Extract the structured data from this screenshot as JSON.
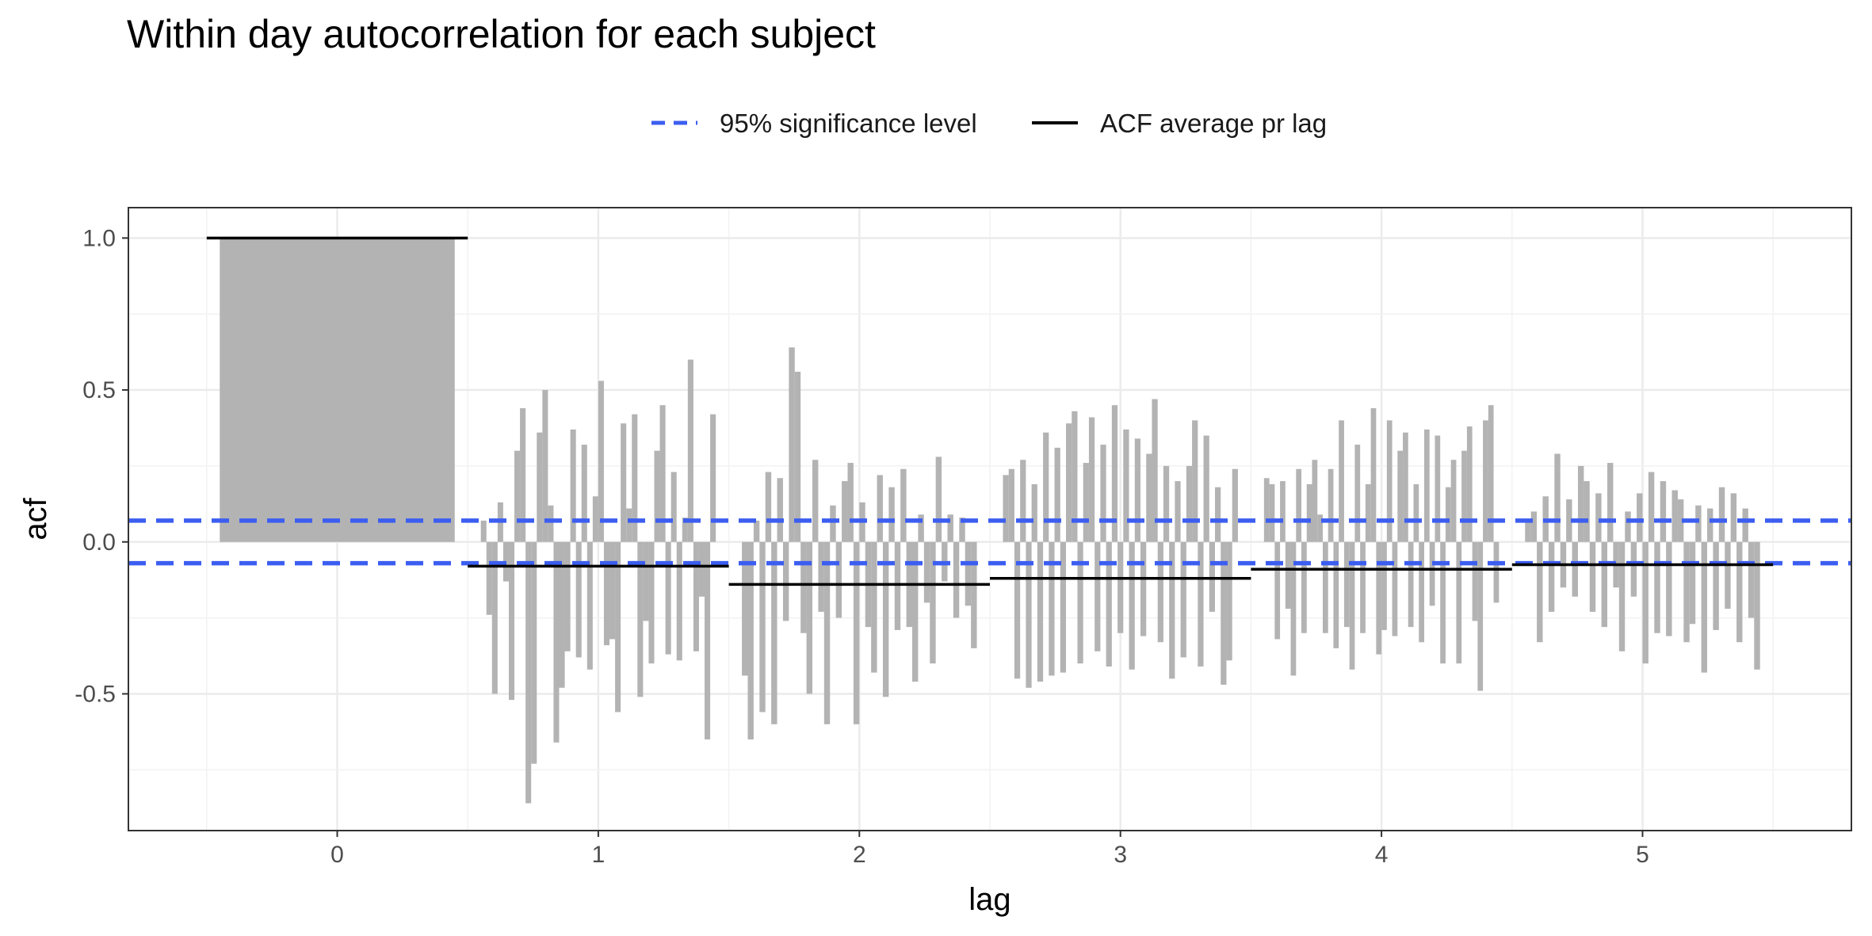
{
  "chart_data": {
    "type": "bar",
    "title": "Within day autocorrelation for each subject",
    "xlabel": "lag",
    "ylabel": "acf",
    "x_ticks": [
      0,
      1,
      2,
      3,
      4,
      5
    ],
    "x_tick_labels": [
      "0",
      "1",
      "2",
      "3",
      "4",
      "5"
    ],
    "y_ticks": [
      -0.5,
      0.0,
      0.5,
      1.0
    ],
    "y_tick_labels": [
      "-0.5",
      "0.0",
      "0.5",
      "1.0"
    ],
    "xlim": [
      -0.8,
      5.8
    ],
    "ylim": [
      -0.95,
      1.1
    ],
    "grid": true,
    "legend_position": "top",
    "legend": [
      {
        "name": "95% significance level",
        "style": "dashed",
        "color": "#3c5ef0"
      },
      {
        "name": "ACF average pr lag",
        "style": "solid",
        "color": "#000000"
      }
    ],
    "bar_color": "#b3b3b3",
    "significance_level": 0.07,
    "acf_average_by_lag": [
      {
        "lag": 0,
        "value": 1.0
      },
      {
        "lag": 1,
        "value": -0.08
      },
      {
        "lag": 2,
        "value": -0.14
      },
      {
        "lag": 3,
        "value": -0.12
      },
      {
        "lag": 4,
        "value": -0.09
      },
      {
        "lag": 5,
        "value": -0.075
      }
    ],
    "series": [
      {
        "lag": 0,
        "values": [
          1.0
        ]
      },
      {
        "lag": 1,
        "values": [
          0.07,
          -0.24,
          -0.5,
          0.13,
          -0.13,
          -0.52,
          0.3,
          0.44,
          -0.86,
          -0.73,
          0.36,
          0.5,
          0.12,
          -0.66,
          -0.48,
          -0.36,
          0.37,
          -0.38,
          0.32,
          -0.42,
          0.15,
          0.53,
          -0.34,
          -0.32,
          -0.56,
          0.39,
          0.11,
          0.42,
          -0.51,
          -0.26,
          -0.4,
          0.3,
          0.45,
          -0.37,
          0.23,
          -0.39,
          0.08,
          0.6,
          -0.36,
          -0.18,
          -0.65,
          0.42
        ]
      },
      {
        "lag": 2,
        "values": [
          -0.44,
          -0.65,
          0.07,
          -0.56,
          0.23,
          -0.6,
          0.21,
          -0.26,
          0.64,
          0.56,
          -0.3,
          -0.5,
          0.27,
          -0.23,
          -0.6,
          0.12,
          -0.25,
          0.2,
          0.26,
          -0.6,
          0.13,
          -0.28,
          -0.43,
          0.22,
          -0.51,
          0.18,
          -0.29,
          0.24,
          -0.28,
          -0.46,
          0.09,
          -0.2,
          -0.4,
          0.28,
          -0.13,
          0.09,
          -0.25,
          0.08,
          -0.21,
          -0.35
        ]
      },
      {
        "lag": 3,
        "values": [
          0.22,
          0.24,
          -0.45,
          0.27,
          -0.48,
          0.19,
          -0.46,
          0.36,
          -0.44,
          0.31,
          -0.43,
          0.39,
          0.43,
          -0.4,
          0.26,
          0.41,
          -0.36,
          0.32,
          -0.41,
          0.45,
          -0.3,
          0.37,
          -0.42,
          0.34,
          -0.31,
          0.29,
          0.47,
          -0.33,
          0.25,
          -0.45,
          0.2,
          -0.38,
          0.25,
          0.4,
          -0.41,
          0.35,
          -0.23,
          0.18,
          -0.47,
          -0.39,
          0.24
        ]
      },
      {
        "lag": 4,
        "values": [
          0.21,
          0.19,
          -0.32,
          0.2,
          -0.22,
          -0.44,
          0.24,
          -0.3,
          0.19,
          0.27,
          0.09,
          -0.3,
          0.24,
          -0.35,
          0.4,
          -0.28,
          -0.42,
          0.32,
          -0.3,
          0.19,
          0.44,
          -0.37,
          -0.29,
          0.4,
          -0.31,
          0.3,
          0.36,
          -0.28,
          0.19,
          -0.33,
          0.37,
          -0.21,
          0.35,
          -0.4,
          0.18,
          0.27,
          -0.4,
          0.3,
          0.38,
          -0.26,
          -0.49,
          0.4,
          0.45,
          -0.2
        ]
      },
      {
        "lag": 5,
        "values": [
          0.07,
          0.1,
          -0.33,
          0.15,
          -0.23,
          0.29,
          -0.15,
          0.14,
          -0.18,
          0.25,
          0.2,
          -0.23,
          0.16,
          -0.28,
          0.26,
          -0.15,
          -0.36,
          0.1,
          -0.18,
          0.16,
          -0.4,
          0.23,
          -0.3,
          0.2,
          -0.31,
          0.17,
          0.14,
          -0.33,
          -0.27,
          0.12,
          -0.43,
          0.11,
          -0.29,
          0.18,
          -0.22,
          0.16,
          -0.33,
          0.11,
          -0.25,
          -0.42
        ]
      }
    ]
  }
}
